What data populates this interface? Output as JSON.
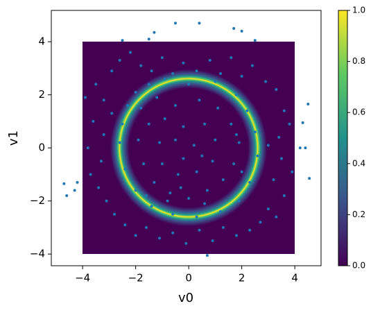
{
  "chart_data": {
    "type": "scatter",
    "xlabel": "v0",
    "ylabel": "v1",
    "xlim": [
      -5.18,
      4.99
    ],
    "ylim": [
      -4.44,
      5.18
    ],
    "xticks": [
      {
        "value": -4,
        "label": "−4"
      },
      {
        "value": -2,
        "label": "−2"
      },
      0,
      2,
      4
    ],
    "yticks": [
      {
        "value": -4,
        "label": "−4"
      },
      {
        "value": -2,
        "label": "−2"
      },
      0,
      2,
      4
    ],
    "color": "#1f77b4",
    "colorbar": {
      "lim": [
        0,
        1
      ],
      "ticks": [
        {
          "value": 0,
          "label": "0.0"
        },
        {
          "value": 0.2,
          "label": "0.2"
        },
        {
          "value": 0.4,
          "label": "0.4"
        },
        {
          "value": 0.6,
          "label": "0.6"
        },
        {
          "value": 0.8,
          "label": "0.8"
        },
        {
          "value": 1,
          "label": "1.0"
        }
      ]
    },
    "x": [
      -3.5,
      -3.2,
      -2.9,
      -2.6,
      -2.2,
      -1.8,
      -1.4,
      -1.0,
      -0.6,
      -0.2,
      0.3,
      0.8,
      1.2,
      1.6,
      2.0,
      2.4,
      2.9,
      3.3,
      3.6,
      3.8,
      3.4,
      3.0,
      3.5,
      3.9,
      3.2,
      3.6,
      3.0,
      2.7,
      3.3,
      2.3,
      1.8,
      1.3,
      0.9,
      0.4,
      -0.1,
      -0.6,
      -1.1,
      -1.6,
      -2.0,
      -2.4,
      -2.8,
      -3.1,
      -3.4,
      -3.7,
      -3.3,
      -3.8,
      -3.2,
      -3.6,
      -2.9,
      -3.9,
      -2.3,
      -2.0,
      -1.5,
      -0.9,
      0.0,
      1.0,
      1.8,
      2.2,
      2.5,
      2.6,
      2.3,
      1.9,
      1.2,
      0.3,
      -0.6,
      -1.4,
      -2.0,
      -2.4,
      -2.6,
      -2.5,
      -1.8,
      -1.2,
      -0.5,
      0.4,
      1.1,
      1.6,
      1.9,
      1.7,
      1.3,
      0.7,
      0.0,
      -0.7,
      -1.3,
      -1.7,
      -1.9,
      -1.5,
      -0.9,
      -0.2,
      0.6,
      1.0,
      0.9,
      0.3,
      -0.4,
      -1.0,
      -1.1,
      -0.5,
      0.2,
      0.5,
      -0.2,
      -0.8,
      -0.3,
      0.6,
      1.8,
      2.0,
      -1.6,
      -4.7,
      -4.6,
      -4.3,
      -4.2,
      4.5,
      4.3,
      4.2,
      4.4,
      4.55,
      -0.5,
      0.4,
      1.7,
      2.0,
      2.5,
      -2.5,
      -1.5,
      -1.3,
      0.7
    ],
    "series": [
      {
        "values": [
          2.4,
          1.8,
          2.9,
          3.3,
          3.6,
          3.1,
          2.9,
          3.4,
          2.8,
          3.2,
          2.9,
          3.3,
          2.8,
          3.4,
          2.7,
          3.1,
          2.5,
          2.2,
          1.4,
          0.9,
          0.4,
          0.1,
          -0.4,
          -0.9,
          -1.2,
          -1.8,
          -2.3,
          -2.8,
          -2.6,
          -3.1,
          -3.3,
          -3.0,
          -3.5,
          -3.1,
          -3.6,
          -3.2,
          -3.4,
          -3.0,
          -3.3,
          -2.9,
          -2.5,
          -2.0,
          -1.5,
          -1.0,
          -0.5,
          0.0,
          0.5,
          1.0,
          1.3,
          1.9,
          1.6,
          2.1,
          2.4,
          2.6,
          2.4,
          2.5,
          2.0,
          1.4,
          0.6,
          -0.3,
          -1.3,
          -2.0,
          -2.4,
          -2.6,
          -2.5,
          -2.2,
          -1.6,
          -0.8,
          0.2,
          0.9,
          1.5,
          1.9,
          1.6,
          1.8,
          1.5,
          0.9,
          0.2,
          -0.6,
          -1.2,
          -1.6,
          -1.9,
          -1.7,
          -1.3,
          -0.6,
          0.3,
          0.9,
          1.1,
          0.8,
          0.9,
          0.3,
          -0.5,
          -0.9,
          -1.0,
          -0.6,
          0.2,
          0.3,
          0.1,
          -0.3,
          -0.4,
          -2.0,
          -1.5,
          -2.1,
          0.5,
          -0.9,
          -1.8,
          -1.35,
          -1.8,
          -1.6,
          -1.3,
          1.65,
          0.95,
          0.0,
          0.0,
          -1.15,
          4.7,
          4.7,
          4.5,
          4.4,
          4.05,
          4.05,
          4.1,
          4.35,
          -4.05
        ]
      }
    ]
  }
}
